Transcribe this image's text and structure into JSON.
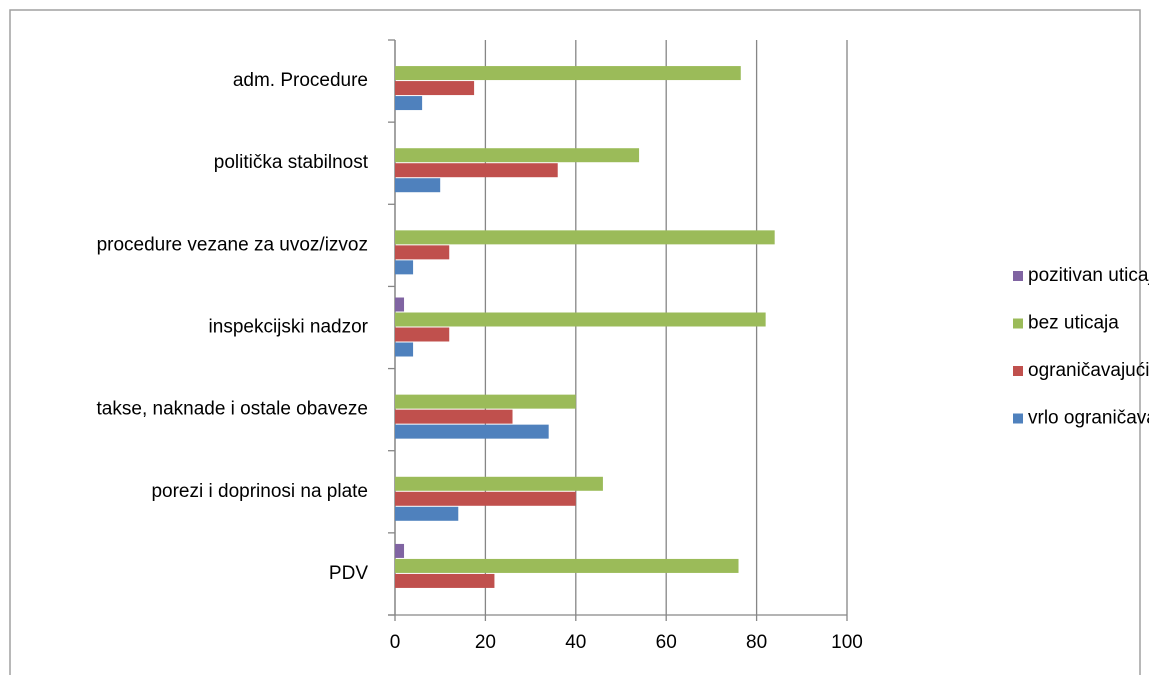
{
  "chart_data": {
    "type": "bar",
    "orientation": "horizontal",
    "categories": [
      "adm. Procedure",
      "politička stabilnost",
      "procedure vezane za uvoz/izvoz",
      "inspekcijski nadzor",
      "takse, naknade i ostale obaveze",
      "porezi i doprinosi na plate",
      "PDV"
    ],
    "series": [
      {
        "name": "vrlo ograničavajući",
        "color": "#4f81bd",
        "values": [
          6,
          10,
          4,
          4,
          34,
          14,
          0
        ]
      },
      {
        "name": "ograničavajući",
        "color": "#c0504d",
        "values": [
          17.5,
          36,
          12,
          12,
          26,
          40,
          22
        ]
      },
      {
        "name": "bez uticaja",
        "color": "#9bbb59",
        "values": [
          76.5,
          54,
          84,
          82,
          40,
          46,
          76
        ]
      },
      {
        "name": "pozitivan uticaj",
        "color": "#8064a2",
        "values": [
          0,
          0,
          0,
          2,
          0,
          0,
          2
        ]
      }
    ],
    "xlim": [
      0,
      100
    ],
    "xticks": [
      0,
      20,
      40,
      60,
      80,
      100
    ],
    "grid": true,
    "legend": "right"
  }
}
